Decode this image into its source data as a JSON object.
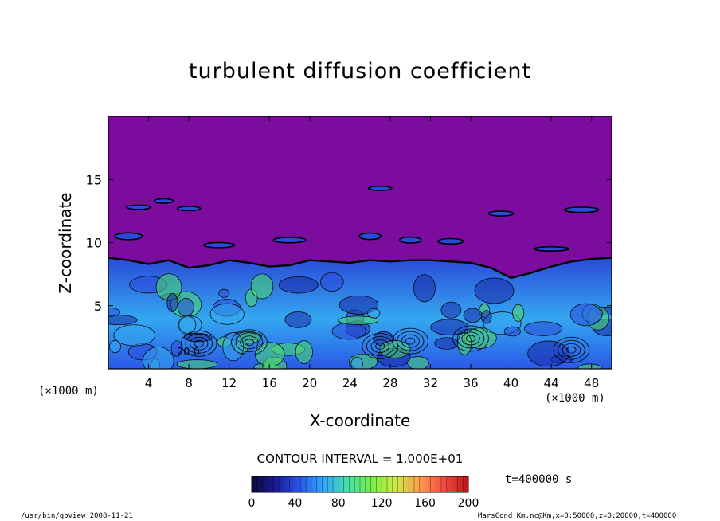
{
  "chart_data": {
    "type": "heatmap",
    "title": "turbulent diffusion coefficient",
    "xlabel": "X-coordinate",
    "ylabel": "Z-coordinate",
    "x_unit": "(×1000 m)",
    "z_unit": "(×1000 m)",
    "xlim": [
      0,
      50
    ],
    "ylim": [
      0,
      20
    ],
    "x_ticks": [
      4,
      8,
      12,
      16,
      20,
      24,
      28,
      32,
      36,
      40,
      44,
      48
    ],
    "y_ticks": [
      5,
      10,
      15
    ],
    "contour_interval": "CONTOUR INTERVAL = 1.000E+01",
    "contour_label": "20.0",
    "time_label": "t=400000 s",
    "colorbar": {
      "range": [
        0,
        200
      ],
      "ticks": [
        0,
        40,
        80,
        120,
        160,
        200
      ],
      "colors": [
        "#0a0a3a",
        "#1a1a9a",
        "#2a58e6",
        "#30a8ff",
        "#46e0a8",
        "#7aee44",
        "#d0e84a",
        "#ff9a4a",
        "#f04a40",
        "#c01418"
      ]
    },
    "field_colors": {
      "above_boundary_layer": "#7c0c9e",
      "low": "#2a4ad8",
      "mid": "#34a8f0",
      "high": "#4cdc6c"
    },
    "boundary_layer_top_km": [
      [
        0,
        8.8
      ],
      [
        2,
        8.6
      ],
      [
        4,
        8.3
      ],
      [
        6,
        8.6
      ],
      [
        8,
        8.0
      ],
      [
        10,
        8.2
      ],
      [
        12,
        8.6
      ],
      [
        14,
        8.4
      ],
      [
        16,
        8.1
      ],
      [
        18,
        8.2
      ],
      [
        20,
        8.6
      ],
      [
        22,
        8.5
      ],
      [
        24,
        8.4
      ],
      [
        26,
        8.6
      ],
      [
        28,
        8.5
      ],
      [
        30,
        8.6
      ],
      [
        32,
        8.6
      ],
      [
        34,
        8.5
      ],
      [
        36,
        8.4
      ],
      [
        38,
        8.0
      ],
      [
        40,
        7.2
      ],
      [
        42,
        7.6
      ],
      [
        44,
        8.1
      ],
      [
        46,
        8.5
      ],
      [
        48,
        8.7
      ],
      [
        50,
        8.8
      ]
    ]
  },
  "footer": {
    "left": "/usr/bin/gpview  2008-11-21",
    "right": "MarsCond_Km.nc@Km,x=0:50000,z=0:20000,t=400000"
  }
}
